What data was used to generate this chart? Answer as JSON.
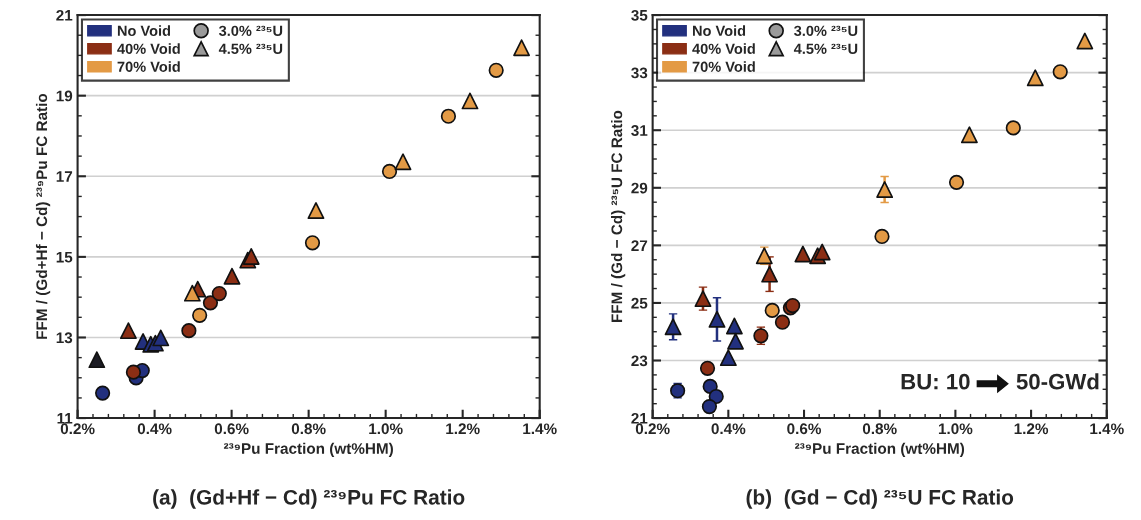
{
  "chart_data": [
    {
      "type": "scatter",
      "title": "(a)  (Gd+Hf − Cd) ²³⁹Pu FC Ratio",
      "xlabel": "²³⁹Pu Fraction (wt%HM)",
      "ylabel": "FFM / (Gd+Hf − Cd) ²³⁹Pu FC Ratio",
      "xlim": [
        0.2,
        1.4
      ],
      "xticks": [
        {
          "value": 0.2,
          "label": "0.2%"
        },
        {
          "value": 0.4,
          "label": "0.4%"
        },
        {
          "value": 0.6,
          "label": "0.6%"
        },
        {
          "value": 0.8,
          "label": "0.8%"
        },
        {
          "value": 1.0,
          "label": "1.0%"
        },
        {
          "value": 1.2,
          "label": "1.2%"
        },
        {
          "value": 1.4,
          "label": "1.4%"
        }
      ],
      "ylim": [
        11,
        21
      ],
      "yticks": [
        11,
        13,
        15,
        17,
        19,
        21
      ],
      "grid": "y",
      "legend": "top left",
      "series": [
        {
          "color": "#22307e",
          "marker": "circle",
          "x": [
            0.265,
            0.352,
            0.368
          ],
          "values": [
            11.62,
            12.0,
            12.18
          ]
        },
        {
          "color": "#1c1c24",
          "marker": "triangle",
          "x": [
            0.25
          ],
          "values": [
            12.45
          ]
        },
        {
          "color": "#22307e",
          "marker": "triangle",
          "x": [
            0.37,
            0.39,
            0.402,
            0.416
          ],
          "values": [
            12.9,
            12.83,
            12.86,
            12.99
          ]
        },
        {
          "color": "#8b2e14",
          "marker": "circle",
          "x": [
            0.345,
            0.489,
            0.545,
            0.568
          ],
          "values": [
            12.14,
            13.17,
            13.86,
            14.09
          ]
        },
        {
          "color": "#8b2e14",
          "marker": "triangle",
          "x": [
            0.332,
            0.512,
            0.601,
            0.642,
            0.651
          ],
          "values": [
            13.17,
            14.2,
            14.52,
            14.92,
            15.01
          ]
        },
        {
          "color": "#e39a45",
          "marker": "circle",
          "x": [
            0.517,
            0.81,
            1.01,
            1.163,
            1.287
          ],
          "values": [
            13.55,
            15.35,
            17.12,
            18.49,
            19.63
          ]
        },
        {
          "color": "#e39a45",
          "marker": "triangle",
          "x": [
            0.498,
            0.819,
            1.045,
            1.219,
            1.353
          ],
          "values": [
            14.1,
            16.15,
            17.36,
            18.87,
            20.19
          ]
        },
        {
          "type": "bar",
          "name": "No Void",
          "color": "#22307e"
        },
        {
          "type": "bar",
          "name": "40% Void",
          "color": "#8b2e14"
        },
        {
          "type": "bar",
          "name": "70% Void",
          "color": "#e39a45"
        },
        {
          "name": "3.0% ²³⁵U",
          "color": "#9a9a9a",
          "marker": "circle"
        },
        {
          "name": "4.5% ²³⁵U",
          "color": "#9a9a9a",
          "marker": "triangle"
        }
      ]
    },
    {
      "type": "scatter",
      "title": "(b)  (Gd − Cd) ²³⁵U FC Ratio",
      "xlabel": "²³⁹Pu Fraction (wt%HM)",
      "ylabel": "FFM / (Gd − Cd) ²³⁵U FC Ratio",
      "xlim": [
        0.2,
        1.4
      ],
      "xticks": [
        {
          "value": 0.2,
          "label": "0.2%"
        },
        {
          "value": 0.4,
          "label": "0.4%"
        },
        {
          "value": 0.6,
          "label": "0.6%"
        },
        {
          "value": 0.8,
          "label": "0.8%"
        },
        {
          "value": 1.0,
          "label": "1.0%"
        },
        {
          "value": 1.2,
          "label": "1.2%"
        },
        {
          "value": 1.4,
          "label": "1.4%"
        }
      ],
      "ylim": [
        21,
        35
      ],
      "yticks": [
        21,
        23,
        25,
        27,
        29,
        31,
        33,
        35
      ],
      "grid": "y",
      "legend": "top left",
      "annotations": [
        "BU: 10",
        "50-GWd"
      ],
      "series": [
        {
          "color": "#22307e",
          "marker": "circle",
          "x": [
            0.266,
            0.352,
            0.368,
            0.35
          ],
          "values": [
            21.95,
            22.1,
            21.75,
            21.4
          ],
          "errors": [
            0.25,
            null,
            null,
            null
          ]
        },
        {
          "color": "#22307e",
          "marker": "triangle",
          "x": [
            0.254,
            0.37,
            0.416,
            0.419,
            0.4
          ],
          "values": [
            24.17,
            24.43,
            24.2,
            23.67,
            23.1
          ],
          "errors": [
            0.45,
            0.75,
            null,
            null,
            null
          ]
        },
        {
          "color": "#8b2e14",
          "marker": "circle",
          "x": [
            0.345,
            0.486,
            0.543,
            0.564,
            0.57
          ],
          "values": [
            22.73,
            23.86,
            24.33,
            24.83,
            24.91
          ],
          "errors": [
            null,
            0.3,
            null,
            null,
            null
          ]
        },
        {
          "color": "#8b2e14",
          "marker": "triangle",
          "x": [
            0.333,
            0.509,
            0.597,
            0.636,
            0.648
          ],
          "values": [
            25.15,
            26.0,
            26.7,
            26.64,
            26.77
          ],
          "errors": [
            0.4,
            0.6,
            null,
            null,
            null
          ]
        },
        {
          "color": "#e39a45",
          "marker": "circle",
          "x": [
            0.516,
            0.806,
            1.003,
            1.153,
            1.277
          ],
          "values": [
            24.74,
            27.31,
            29.19,
            31.08,
            33.03
          ]
        },
        {
          "color": "#e39a45",
          "marker": "triangle",
          "x": [
            0.495,
            0.813,
            1.037,
            1.211,
            1.342
          ],
          "values": [
            26.64,
            28.94,
            30.84,
            32.82,
            34.1
          ],
          "errors": [
            0.3,
            0.45,
            null,
            null,
            null
          ]
        },
        {
          "type": "bar",
          "name": "No Void",
          "color": "#22307e"
        },
        {
          "type": "bar",
          "name": "40% Void",
          "color": "#8b2e14"
        },
        {
          "type": "bar",
          "name": "70% Void",
          "color": "#e39a45"
        },
        {
          "name": "3.0% ²³⁵U",
          "color": "#9a9a9a",
          "marker": "circle"
        },
        {
          "name": "4.5% ²³⁵U",
          "color": "#9a9a9a",
          "marker": "triangle"
        }
      ]
    }
  ]
}
